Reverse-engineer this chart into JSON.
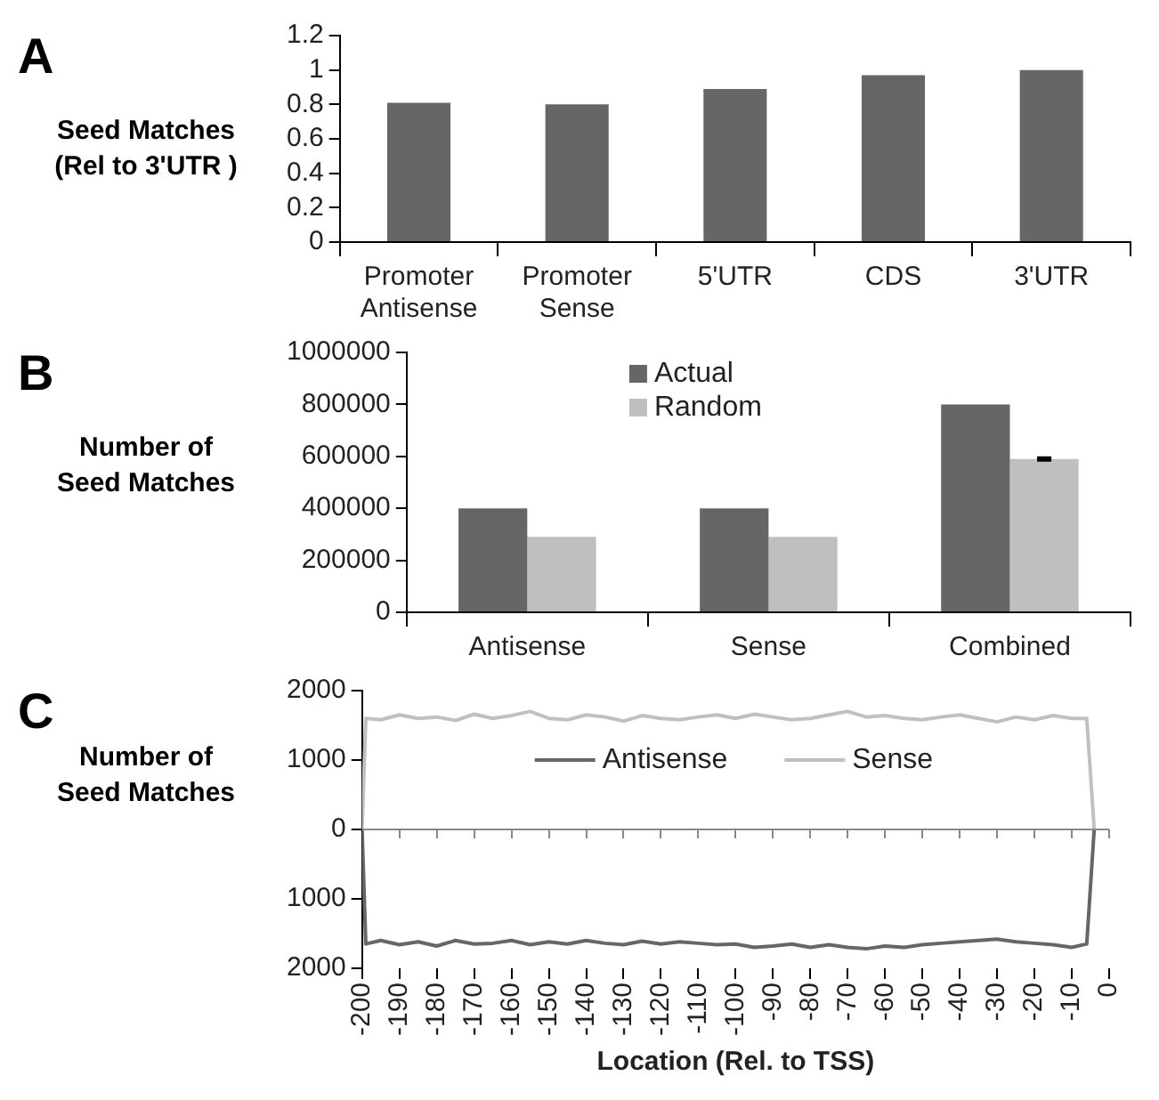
{
  "chart_data": [
    {
      "type": "bar",
      "title": "A",
      "ylabel": "Seed Matches\n(Rel to 3'UTR )",
      "categories": [
        "Promoter Antisense",
        "Promoter Sense",
        "5'UTR",
        "CDS",
        "3'UTR"
      ],
      "values": [
        0.81,
        0.8,
        0.89,
        0.97,
        1.0
      ],
      "color": "#666666",
      "ylim": [
        0,
        1.2
      ],
      "yticks": [
        0,
        0.2,
        0.4,
        0.6,
        0.8,
        1,
        1.2
      ],
      "grid": false,
      "legend": false
    },
    {
      "type": "bar",
      "title": "B",
      "ylabel": "Number of\nSeed Matches",
      "categories": [
        "Antisense",
        "Sense",
        "Combined"
      ],
      "series": [
        {
          "name": "Actual",
          "color": "#666666",
          "values": [
            400000,
            400000,
            800000
          ]
        },
        {
          "name": "Random",
          "color": "#bfbfbf",
          "values": [
            290000,
            290000,
            590000
          ],
          "errors": [
            null,
            null,
            5000
          ]
        }
      ],
      "ylim": [
        0,
        1000000
      ],
      "yticks": [
        0,
        200000,
        400000,
        600000,
        800000,
        1000000
      ],
      "grid": false,
      "legend": "top"
    },
    {
      "type": "line",
      "title": "C",
      "ylabel": "Number of\nSeed Matches",
      "xlabel": "Location (Rel. to TSS)",
      "x": [
        -200,
        -199,
        -195,
        -190,
        -185,
        -180,
        -175,
        -170,
        -165,
        -160,
        -155,
        -150,
        -145,
        -140,
        -135,
        -130,
        -125,
        -120,
        -115,
        -110,
        -105,
        -100,
        -95,
        -90,
        -85,
        -80,
        -75,
        -70,
        -65,
        -60,
        -55,
        -50,
        -45,
        -40,
        -35,
        -30,
        -25,
        -20,
        -15,
        -10,
        -6,
        -4
      ],
      "series": [
        {
          "name": "Antisense",
          "color": "#666666",
          "values": [
            0,
            -1650,
            -1600,
            -1660,
            -1620,
            -1680,
            -1600,
            -1650,
            -1640,
            -1600,
            -1660,
            -1620,
            -1650,
            -1600,
            -1640,
            -1660,
            -1610,
            -1650,
            -1620,
            -1640,
            -1660,
            -1650,
            -1700,
            -1680,
            -1650,
            -1700,
            -1660,
            -1700,
            -1720,
            -1680,
            -1700,
            -1660,
            -1640,
            -1620,
            -1600,
            -1580,
            -1620,
            -1640,
            -1660,
            -1700,
            -1650,
            0
          ]
        },
        {
          "name": "Sense",
          "color": "#c0c0c0",
          "values": [
            0,
            1600,
            1580,
            1650,
            1600,
            1620,
            1570,
            1660,
            1600,
            1640,
            1700,
            1600,
            1580,
            1650,
            1620,
            1560,
            1640,
            1600,
            1580,
            1620,
            1650,
            1600,
            1660,
            1620,
            1580,
            1600,
            1650,
            1700,
            1620,
            1640,
            1600,
            1580,
            1620,
            1650,
            1600,
            1550,
            1620,
            1580,
            1640,
            1600,
            1600,
            0
          ]
        }
      ],
      "xlim": [
        -200,
        0
      ],
      "xticks": [
        -200,
        -190,
        -180,
        -170,
        -160,
        -150,
        -140,
        -130,
        -120,
        -110,
        -100,
        -90,
        -80,
        -70,
        -60,
        -50,
        -40,
        -30,
        -20,
        -10,
        0
      ],
      "ylim": [
        -2000,
        2000
      ],
      "yticks": [
        {
          "value": -2000,
          "label": "2000"
        },
        {
          "value": -1000,
          "label": "1000"
        },
        0,
        1000,
        2000
      ],
      "grid": false,
      "legend": "center",
      "marker": "none",
      "ref_lines": [
        {
          "axis": "y",
          "value": 0,
          "color": "#888888"
        }
      ]
    }
  ]
}
